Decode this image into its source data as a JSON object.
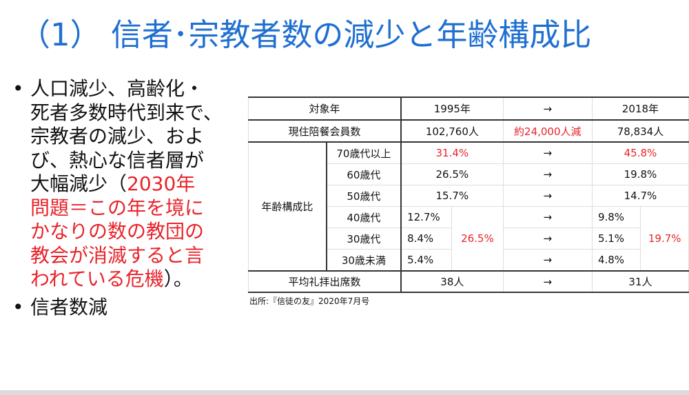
{
  "title": "（1） 信者･宗教者数の減少と年齢構成比",
  "bullets": {
    "b1_lines": [
      "人口減少、高齢化・",
      "死者多数時代到来で、",
      "宗教者の減少、およ",
      "び、熱心な信者層が"
    ],
    "b1_line5_black": "大幅減少（",
    "b1_line5_red": "2030年",
    "b1_red_lines": [
      "問題＝この年を境に",
      "かなりの数の教団の",
      "教会が消滅すると言"
    ],
    "b1_last_red": "われている危機",
    "b1_last_black": "）。",
    "b2": "信者数減",
    "bullet_symbol": "•"
  },
  "table": {
    "header": {
      "label": "対象年",
      "y1": "1995年",
      "arrow": "→",
      "y2": "2018年"
    },
    "members": {
      "label": "現住陪餐会員数",
      "y1": "102,760人",
      "change": "約24,000人減",
      "y2": "78,834人"
    },
    "age_label": "年齢構成比",
    "ages": [
      {
        "label": "70歳代以上",
        "y1": "31.4%",
        "arrow": "→",
        "y2": "45.8%"
      },
      {
        "label": "60歳代",
        "y1": "26.5%",
        "arrow": "→",
        "y2": "19.8%"
      },
      {
        "label": "50歳代",
        "y1": "15.7%",
        "arrow": "→",
        "y2": "14.7%"
      },
      {
        "label": "40歳代",
        "y1": "12.7%",
        "arrow": "→",
        "y2": "9.8%"
      },
      {
        "label": "30歳代",
        "y1": "8.4%",
        "arrow": "→",
        "y2": "5.1%"
      },
      {
        "label": "30歳未満",
        "y1": "5.4%",
        "arrow": "→",
        "y2": "4.8%"
      }
    ],
    "under50_total_1995": "26.5%",
    "under50_total_2018": "19.7%",
    "attendance": {
      "label": "平均礼拝出席数",
      "y1": "38人",
      "arrow": "→",
      "y2": "31人"
    },
    "source": "出所:『信徒の友』2020年7月号"
  },
  "colors": {
    "title": "#1f6fd1",
    "highlight": "#e8232a"
  }
}
